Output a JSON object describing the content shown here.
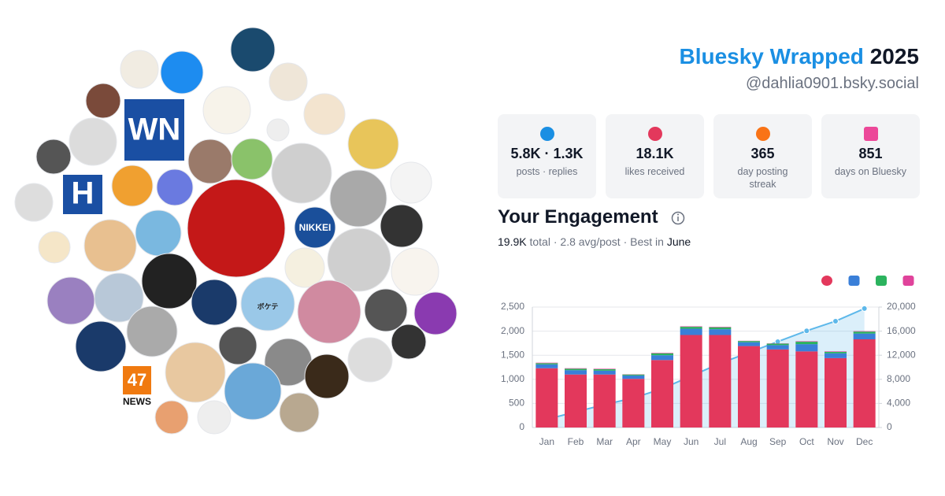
{
  "header": {
    "title": "Bluesky Wrapped",
    "year": "2025",
    "handle": "@dahlia0901.bsky.social"
  },
  "avatar_texts": [
    "WN",
    "H",
    "NIKKEI",
    "47",
    "NEWS",
    "ボケテ"
  ],
  "stats": [
    {
      "value": "5.8K · 1.3K",
      "label": "posts · replies"
    },
    {
      "value": "18.1K",
      "label": "likes received"
    },
    {
      "value": "365",
      "label": "day posting streak"
    },
    {
      "value": "851",
      "label": "days on Bluesky"
    }
  ],
  "engagement": {
    "title": "Your Engagement",
    "total": "19.9K",
    "total_label": "total",
    "separator": "·",
    "avg": "2.8 avg/post",
    "best_label": "Best in",
    "best": "June"
  },
  "chart_data": {
    "type": "bar-line",
    "categories": [
      "Jan",
      "Feb",
      "Mar",
      "Apr",
      "May",
      "Jun",
      "Jul",
      "Aug",
      "Sep",
      "Oct",
      "Nov",
      "Dec"
    ],
    "series": [
      {
        "color": "#e3385c",
        "values": [
          1230,
          1100,
          1100,
          1010,
          1400,
          1920,
          1920,
          1690,
          1620,
          1580,
          1440,
          1830
        ]
      },
      {
        "color": "#3a7fd8",
        "values": [
          80,
          90,
          80,
          70,
          100,
          130,
          120,
          80,
          90,
          150,
          100,
          120
        ]
      },
      {
        "color": "#2bb35e",
        "values": [
          25,
          30,
          30,
          20,
          40,
          40,
          40,
          25,
          30,
          50,
          30,
          40
        ]
      },
      {
        "color": "#e0439b",
        "values": [
          10,
          10,
          10,
          5,
          10,
          10,
          10,
          5,
          5,
          10,
          10,
          10
        ]
      },
      {
        "color": "#5db8ea",
        "axis": "y2",
        "values": [
          1350,
          2600,
          3800,
          4900,
          6450,
          8550,
          10650,
          12450,
          14250,
          16050,
          17650,
          19750
        ]
      }
    ],
    "ylim": [
      0,
      2500
    ],
    "yticks": [
      0,
      500,
      {
        "value": 1000,
        "label": "1,000"
      },
      {
        "value": 1500,
        "label": "1,500"
      },
      {
        "value": 2000,
        "label": "2,000"
      },
      {
        "value": 2500,
        "label": "2,500"
      }
    ],
    "y2lim": [
      0,
      20000
    ],
    "y2ticks": [
      0,
      {
        "value": 4000,
        "label": "4,000"
      },
      {
        "value": 8000,
        "label": "8,000"
      },
      {
        "value": 12000,
        "label": "12,000"
      },
      {
        "value": 16000,
        "label": "16,000"
      },
      {
        "value": 20000,
        "label": "20,000"
      }
    ],
    "grid": true
  }
}
